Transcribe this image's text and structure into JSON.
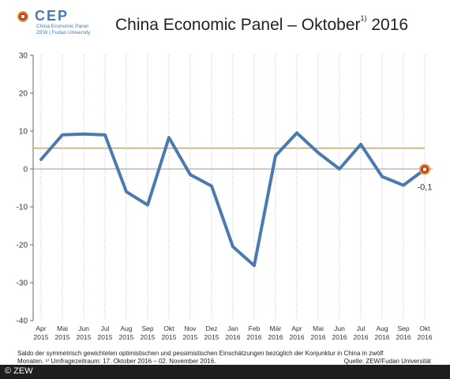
{
  "logo": {
    "name": "CEP",
    "sub1": "China Economic Panel",
    "sub2": "ZEW | Fudan University"
  },
  "title": {
    "main": "China Economic Panel – Oktober",
    "footnote_mark": "1)",
    "year": "2016"
  },
  "caption": {
    "line1": "Saldo der symmetrisch gewichteten optimistischen und pessimistischen Einschätzungen bezüglich der Konjunktur in China in zwölf",
    "line2": "Monaten. ¹⁾ Umfragezeitraum: 17. Oktober 2016 – 02. November 2016."
  },
  "source": "Quelle: ZEW/Fudan Universität",
  "copyright": "© ZEW",
  "chart_data": {
    "type": "line",
    "categories": [
      [
        "Apr",
        "2015"
      ],
      [
        "Mai",
        "2015"
      ],
      [
        "Jun",
        "2015"
      ],
      [
        "Jul",
        "2015"
      ],
      [
        "Aug",
        "2015"
      ],
      [
        "Sep",
        "2015"
      ],
      [
        "Okt",
        "2015"
      ],
      [
        "Nov",
        "2015"
      ],
      [
        "Dez",
        "2015"
      ],
      [
        "Jan",
        "2016"
      ],
      [
        "Feb",
        "2016"
      ],
      [
        "Mär",
        "2016"
      ],
      [
        "Apr",
        "2016"
      ],
      [
        "Mai",
        "2016"
      ],
      [
        "Jun",
        "2016"
      ],
      [
        "Jul",
        "2016"
      ],
      [
        "Aug",
        "2016"
      ],
      [
        "Sep",
        "2016"
      ],
      [
        "Okt",
        "2016"
      ]
    ],
    "values": [
      2.5,
      9.0,
      9.2,
      9.0,
      -6.0,
      -9.5,
      8.3,
      -1.5,
      -4.5,
      -20.5,
      -25.5,
      3.5,
      9.5,
      4.3,
      0.0,
      6.5,
      -2.0,
      -4.3,
      -0.1
    ],
    "average_line": 5.5,
    "last_label": "-0,1",
    "ylim": [
      -40,
      30
    ],
    "yticks": [
      30,
      20,
      10,
      0,
      -10,
      -20,
      -30,
      -40
    ],
    "grid": "vertical dotted",
    "colors": {
      "series": "#4a7ab0",
      "average": "#d9a23a",
      "zero_line": "#999999",
      "marker_fill": "#c0392b",
      "marker_ring": "#d9a23a"
    }
  }
}
